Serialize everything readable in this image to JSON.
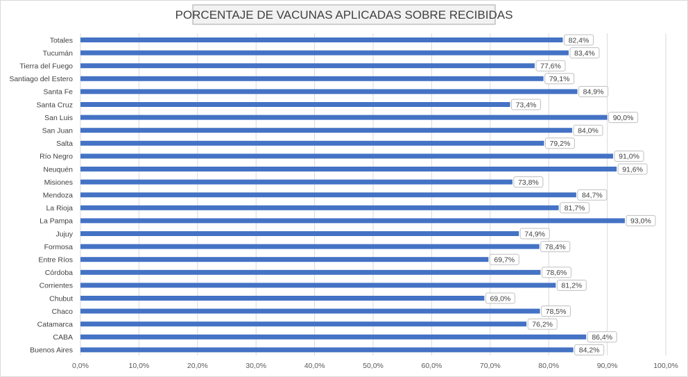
{
  "chart_data": {
    "type": "bar",
    "orientation": "horizontal",
    "title": "PORCENTAJE DE VACUNAS APLICADAS SOBRE RECIBIDAS",
    "xlabel": "",
    "ylabel": "",
    "xlim": [
      0,
      100
    ],
    "grid": true,
    "legend": "none",
    "bar_color": "#4472c4",
    "categories": [
      "Totales",
      "Tucumán",
      "Tierra del Fuego",
      "Santiago del Estero",
      "Santa Fe",
      "Santa Cruz",
      "San Luis",
      "San Juan",
      "Salta",
      "Río Negro",
      "Neuquén",
      "Misiones",
      "Mendoza",
      "La Rioja",
      "La Pampa",
      "Jujuy",
      "Formosa",
      "Entre Ríos",
      "Córdoba",
      "Corrientes",
      "Chubut",
      "Chaco",
      "Catamarca",
      "CABA",
      "Buenos Aires"
    ],
    "values": [
      82.4,
      83.4,
      77.6,
      79.1,
      84.9,
      73.4,
      90.0,
      84.0,
      79.2,
      91.0,
      91.6,
      73.8,
      84.7,
      81.7,
      93.0,
      74.9,
      78.4,
      69.7,
      78.6,
      81.2,
      69.0,
      78.5,
      76.2,
      86.4,
      84.2
    ],
    "data_labels": [
      "82,4%",
      "83,4%",
      "77,6%",
      "79,1%",
      "84,9%",
      "73,4%",
      "90,0%",
      "84,0%",
      "79,2%",
      "91,0%",
      "91,6%",
      "73,8%",
      "84,7%",
      "81,7%",
      "93,0%",
      "74,9%",
      "78,4%",
      "69,7%",
      "78,6%",
      "81,2%",
      "69,0%",
      "78,5%",
      "76,2%",
      "86,4%",
      "84,2%"
    ],
    "tick_values": [
      0,
      10,
      20,
      30,
      40,
      50,
      60,
      70,
      80,
      90,
      100
    ],
    "tick_labels": [
      "0,0%",
      "10,0%",
      "20,0%",
      "30,0%",
      "40,0%",
      "50,0%",
      "60,0%",
      "70,0%",
      "80,0%",
      "90,0%",
      "100,0%"
    ]
  }
}
